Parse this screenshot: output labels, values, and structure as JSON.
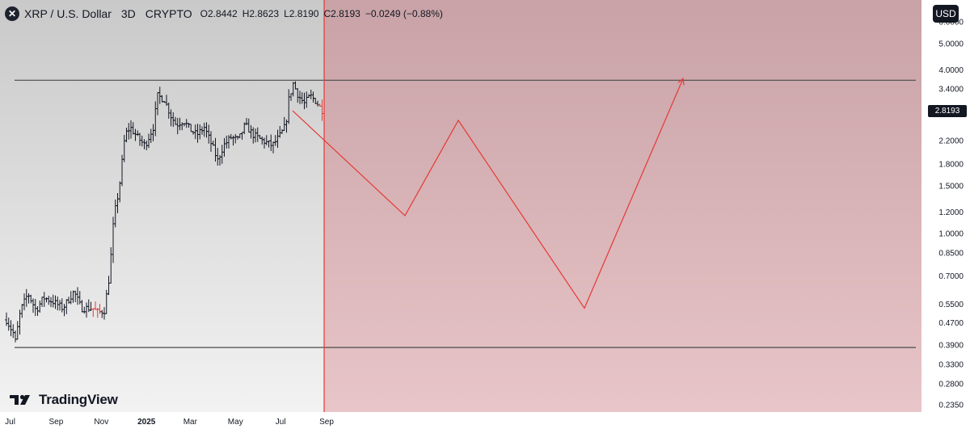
{
  "header": {
    "logo_glyph": "✕",
    "title": "XRP / U.S. Dollar",
    "timeframe": "3D",
    "exchange": "CRYPTO",
    "ohlc": {
      "o_label": "O",
      "o_value": "2.8442",
      "h_label": "H",
      "h_value": "2.8623",
      "l_label": "L",
      "l_value": "2.8190",
      "c_label": "C",
      "c_value": "2.8193",
      "change": "−0.0249 (−0.88%)"
    }
  },
  "currency": "USD",
  "brand": {
    "name": "TradingView"
  },
  "last_price_label": "2.8193",
  "colors": {
    "accent_red": "#e53935",
    "bar": "#131722",
    "level_line": "#4a4a4a",
    "text": "#131722"
  },
  "chart_data": {
    "type": "bar",
    "title": "XRP / U.S. Dollar",
    "scale": "log",
    "ylim": [
      0.22,
      7.2
    ],
    "y_ticks": [
      "6.0000",
      "5.0000",
      "4.0000",
      "3.4000",
      "2.2000",
      "1.8000",
      "1.5000",
      "1.2000",
      "1.0000",
      "0.8500",
      "0.7000",
      "0.5500",
      "0.4700",
      "0.3900",
      "0.3300",
      "0.2800",
      "0.2350"
    ],
    "x_ticks": [
      {
        "label": "Jul",
        "date": "2024-07-01"
      },
      {
        "label": "Sep",
        "date": "2024-09-01"
      },
      {
        "label": "Nov",
        "date": "2024-11-01"
      },
      {
        "label": "2025",
        "date": "2025-01-01"
      },
      {
        "label": "Mar",
        "date": "2025-03-01"
      },
      {
        "label": "May",
        "date": "2025-05-01"
      },
      {
        "label": "Jul",
        "date": "2025-07-01"
      },
      {
        "label": "Sep",
        "date": "2025-09-01"
      }
    ],
    "xlim": [
      "2024-06-26",
      "2025-09-01"
    ],
    "last_price": 2.8193,
    "price_series_path": [
      [
        "2024-06-26",
        0.48
      ],
      [
        "2024-07-05",
        0.43
      ],
      [
        "2024-07-08",
        0.4
      ],
      [
        "2024-07-15",
        0.52
      ],
      [
        "2024-07-25",
        0.6
      ],
      [
        "2024-08-05",
        0.52
      ],
      [
        "2024-08-15",
        0.58
      ],
      [
        "2024-08-28",
        0.56
      ],
      [
        "2024-09-10",
        0.53
      ],
      [
        "2024-09-25",
        0.61
      ],
      [
        "2024-10-05",
        0.53
      ],
      [
        "2024-10-20",
        0.53
      ],
      [
        "2024-10-28",
        0.51
      ],
      [
        "2024-11-05",
        0.52
      ],
      [
        "2024-11-12",
        0.7
      ],
      [
        "2024-11-18",
        1.15
      ],
      [
        "2024-11-25",
        1.45
      ],
      [
        "2024-12-03",
        2.3
      ],
      [
        "2024-12-10",
        2.45
      ],
      [
        "2024-12-20",
        2.25
      ],
      [
        "2024-12-30",
        2.1
      ],
      [
        "2025-01-10",
        2.45
      ],
      [
        "2025-01-16",
        3.2
      ],
      [
        "2025-01-25",
        3.1
      ],
      [
        "2025-02-03",
        2.7
      ],
      [
        "2025-02-10",
        2.5
      ],
      [
        "2025-02-20",
        2.6
      ],
      [
        "2025-03-01",
        2.4
      ],
      [
        "2025-03-10",
        2.3
      ],
      [
        "2025-03-20",
        2.45
      ],
      [
        "2025-04-01",
        2.05
      ],
      [
        "2025-04-07",
        1.85
      ],
      [
        "2025-04-15",
        2.1
      ],
      [
        "2025-04-25",
        2.25
      ],
      [
        "2025-05-05",
        2.2
      ],
      [
        "2025-05-14",
        2.5
      ],
      [
        "2025-05-25",
        2.3
      ],
      [
        "2025-06-05",
        2.2
      ],
      [
        "2025-06-20",
        2.1
      ],
      [
        "2025-07-01",
        2.3
      ],
      [
        "2025-07-08",
        2.5
      ],
      [
        "2025-07-12",
        3.1
      ],
      [
        "2025-07-18",
        3.55
      ],
      [
        "2025-07-25",
        3.2
      ],
      [
        "2025-08-02",
        3.0
      ],
      [
        "2025-08-10",
        3.2
      ],
      [
        "2025-08-18",
        3.05
      ],
      [
        "2025-08-25",
        2.85
      ],
      [
        "2025-08-28",
        2.82
      ]
    ],
    "levels": [
      3.65,
      0.38
    ],
    "projection_divider_date": "2025-08-28",
    "projection_path_y": [
      2.82,
      1.16,
      2.6,
      0.53,
      3.7
    ]
  }
}
